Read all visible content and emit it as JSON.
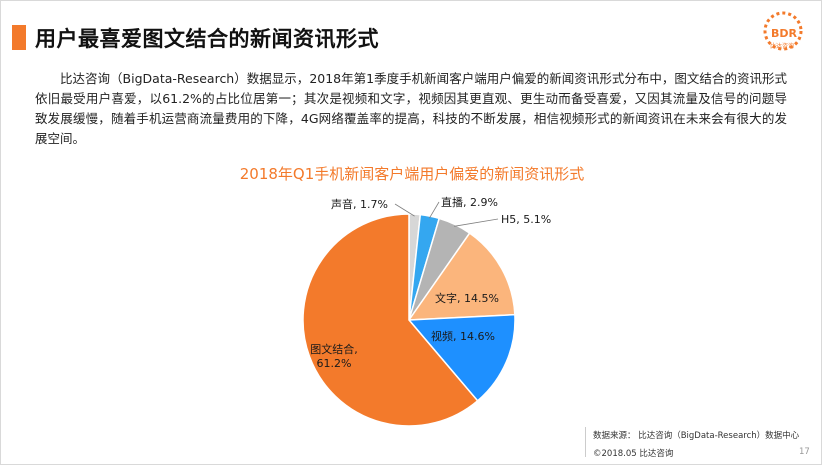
{
  "header": {
    "title": "用户最喜爱图文结合的新闻资讯形式"
  },
  "logo": {
    "text": "BDR",
    "sub": "比达咨询"
  },
  "paragraph": "比达咨询（BigData-Research）数据显示，2018年第1季度手机新闻客户端用户偏爱的新闻资讯形式分布中，图文结合的资讯形式依旧最受用户喜爱，以61.2%的占比位居第一；其次是视频和文字，视频因其更直观、更生动而备受喜爱，又因其流量及信号的问题导致发展缓慢，随着手机运营商流量费用的下降，4G网络覆盖率的提高，科技的不断发展，相信视频形式的新闻资讯在未来会有很大的发展空间。",
  "chart_data": {
    "type": "pie",
    "title": "2018年Q1手机新闻客户端用户偏爱的新闻资讯形式",
    "labels": [
      "图文结合",
      "视频",
      "文字",
      "H5",
      "直播",
      "声音"
    ],
    "values": [
      61.2,
      14.6,
      14.5,
      5.1,
      2.9,
      1.7
    ],
    "display_labels": [
      "图文结合, 61.2%",
      "视频, 14.6%",
      "文字, 14.5%",
      "H5, 5.1%",
      "直播, 2.9%",
      "声音, 1.7%"
    ],
    "colors": [
      "#f37a2b",
      "#1e90ff",
      "#fbb57c",
      "#b4b4b4",
      "#34a7f0",
      "#d7d7d7"
    ]
  },
  "footer": {
    "source": "数据来源：  比达咨询（BigData-Research）数据中心",
    "date": "©2018.05   比达咨询",
    "page": "17"
  }
}
